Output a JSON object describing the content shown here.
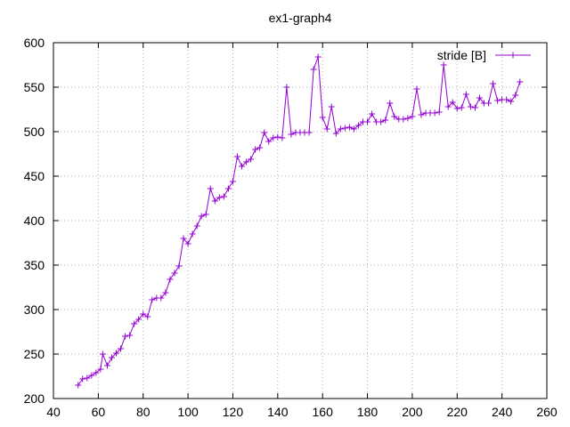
{
  "chart_data": {
    "type": "line",
    "title": "ex1-graph4",
    "xlabel": "",
    "ylabel": "",
    "xlim": [
      40,
      260
    ],
    "ylim": [
      200,
      600
    ],
    "xticks": [
      40,
      60,
      80,
      100,
      120,
      140,
      160,
      180,
      200,
      220,
      240,
      260
    ],
    "yticks": [
      200,
      250,
      300,
      350,
      400,
      450,
      500,
      550,
      600
    ],
    "grid": true,
    "legend_position": "top-right",
    "color": "#9400d3",
    "marker": "plus",
    "series": [
      {
        "name": "stride [B]",
        "points": [
          [
            51,
            215
          ],
          [
            53,
            222
          ],
          [
            55,
            223
          ],
          [
            57,
            226
          ],
          [
            59,
            229
          ],
          [
            61,
            233
          ],
          [
            62,
            250
          ],
          [
            64,
            237
          ],
          [
            66,
            246
          ],
          [
            68,
            251
          ],
          [
            70,
            256
          ],
          [
            72,
            270
          ],
          [
            74,
            271
          ],
          [
            76,
            284
          ],
          [
            78,
            289
          ],
          [
            80,
            295
          ],
          [
            82,
            292
          ],
          [
            84,
            311
          ],
          [
            86,
            313
          ],
          [
            88,
            313
          ],
          [
            90,
            319
          ],
          [
            92,
            334
          ],
          [
            94,
            341
          ],
          [
            96,
            349
          ],
          [
            98,
            380
          ],
          [
            100,
            374
          ],
          [
            102,
            385
          ],
          [
            104,
            394
          ],
          [
            106,
            405
          ],
          [
            108,
            407
          ],
          [
            110,
            436
          ],
          [
            112,
            422
          ],
          [
            114,
            426
          ],
          [
            116,
            427
          ],
          [
            118,
            436
          ],
          [
            120,
            444
          ],
          [
            122,
            472
          ],
          [
            124,
            461
          ],
          [
            126,
            466
          ],
          [
            128,
            469
          ],
          [
            130,
            480
          ],
          [
            132,
            482
          ],
          [
            134,
            499
          ],
          [
            136,
            489
          ],
          [
            138,
            493
          ],
          [
            140,
            494
          ],
          [
            142,
            493
          ],
          [
            144,
            550
          ],
          [
            146,
            497
          ],
          [
            148,
            499
          ],
          [
            150,
            499
          ],
          [
            152,
            499
          ],
          [
            154,
            499
          ],
          [
            156,
            570
          ],
          [
            158,
            584
          ],
          [
            160,
            516
          ],
          [
            162,
            503
          ],
          [
            164,
            528
          ],
          [
            166,
            498
          ],
          [
            168,
            503
          ],
          [
            170,
            504
          ],
          [
            172,
            505
          ],
          [
            174,
            503
          ],
          [
            176,
            507
          ],
          [
            178,
            511
          ],
          [
            180,
            511
          ],
          [
            182,
            520
          ],
          [
            184,
            511
          ],
          [
            186,
            511
          ],
          [
            188,
            513
          ],
          [
            190,
            532
          ],
          [
            192,
            517
          ],
          [
            194,
            514
          ],
          [
            196,
            514
          ],
          [
            198,
            515
          ],
          [
            200,
            517
          ],
          [
            202,
            548
          ],
          [
            204,
            519
          ],
          [
            206,
            521
          ],
          [
            208,
            521
          ],
          [
            210,
            521
          ],
          [
            212,
            522
          ],
          [
            214,
            575
          ],
          [
            216,
            528
          ],
          [
            218,
            533
          ],
          [
            220,
            526
          ],
          [
            222,
            527
          ],
          [
            224,
            542
          ],
          [
            226,
            528
          ],
          [
            228,
            527
          ],
          [
            230,
            538
          ],
          [
            232,
            532
          ],
          [
            234,
            532
          ],
          [
            236,
            554
          ],
          [
            238,
            535
          ],
          [
            240,
            536
          ],
          [
            242,
            536
          ],
          [
            244,
            534
          ],
          [
            246,
            541
          ],
          [
            248,
            556
          ]
        ]
      }
    ]
  }
}
